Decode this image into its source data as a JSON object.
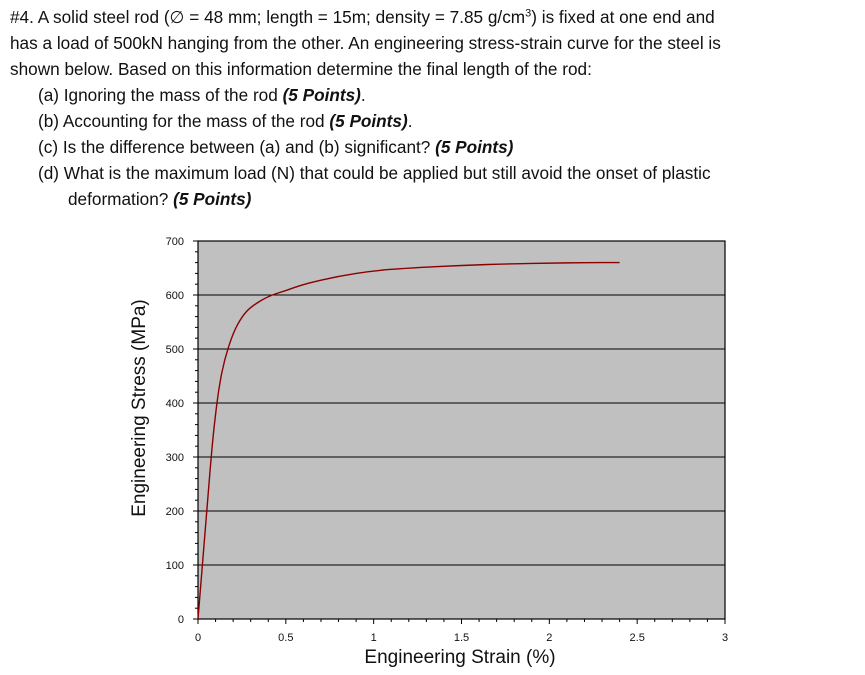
{
  "problem": {
    "line1_a": "#4.  A solid steel rod (∅ = 48 mm; length = 15m; density = 7.85 g/cm",
    "line1_sup": "3",
    "line1_b": ") is fixed at one end and",
    "line2": "has a load of 500kN hanging from the other.  An engineering stress-strain curve for the steel is",
    "line3": "shown below.  Based on this information determine the final length of the rod:",
    "parts": [
      {
        "text": "(a) Ignoring the mass of the rod ",
        "points": "(5 Points)",
        "tail": "."
      },
      {
        "text": "(b) Accounting for the mass of the rod ",
        "points": "(5 Points)",
        "tail": "."
      },
      {
        "text": "(c) Is the difference between (a) and (b) significant? ",
        "points": "(5 Points)",
        "tail": ""
      },
      {
        "text": "(d) What is the maximum load (N) that could be applied but still avoid the onset of plastic",
        "cont": "deformation? ",
        "points": "(5 Points)",
        "tail": ""
      }
    ]
  },
  "chart_data": {
    "type": "line",
    "xlabel": "Engineering Strain (%)",
    "ylabel": "Engineering Stress (MPa)",
    "xlim": [
      0,
      3
    ],
    "ylim": [
      0,
      700
    ],
    "x_ticks": [
      "0",
      "0.5",
      "1",
      "1.5",
      "2",
      "2.5",
      "3"
    ],
    "y_ticks": [
      "0",
      "100",
      "200",
      "300",
      "400",
      "500",
      "600",
      "700"
    ],
    "grid": "horizontal",
    "plot_background": "#c0c0c0",
    "series_color": "#8b0000",
    "series": [
      {
        "x": [
          0,
          0.05,
          0.08,
          0.1,
          0.12,
          0.15,
          0.2,
          0.25,
          0.3,
          0.4,
          0.5,
          0.6,
          0.8,
          1.0,
          1.2,
          1.5,
          1.8,
          2.0,
          2.2,
          2.4
        ],
        "y": [
          0,
          200,
          320,
          380,
          430,
          480,
          530,
          560,
          578,
          598,
          608,
          620,
          635,
          645,
          650,
          655,
          658,
          659,
          660,
          660
        ]
      }
    ]
  }
}
